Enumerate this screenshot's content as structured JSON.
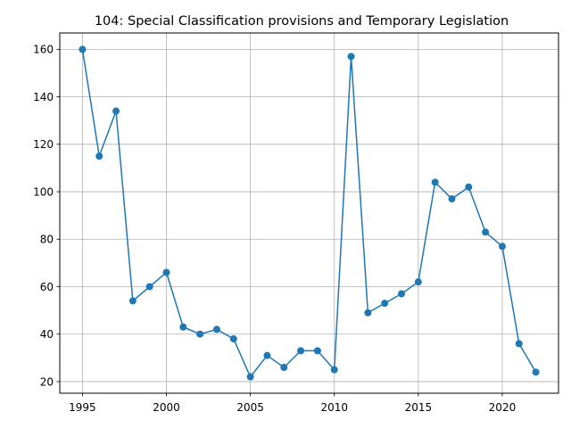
{
  "chart_data": {
    "type": "line",
    "title": "104: Special Classification provisions and Temporary Legislation",
    "xlabel": "",
    "ylabel": "",
    "x": [
      1995,
      1996,
      1997,
      1998,
      1999,
      2000,
      2001,
      2002,
      2003,
      2004,
      2005,
      2006,
      2007,
      2008,
      2009,
      2010,
      2011,
      2012,
      2013,
      2014,
      2015,
      2016,
      2017,
      2018,
      2019,
      2020,
      2021,
      2022
    ],
    "series": [
      {
        "values": [
          160,
          115,
          134,
          54,
          60,
          66,
          43,
          40,
          42,
          38,
          22,
          31,
          26,
          33,
          33,
          25,
          157,
          49,
          53,
          57,
          62,
          104,
          97,
          102,
          83,
          77,
          36,
          24
        ]
      }
    ],
    "xlim": [
      1993.65,
      2023.35
    ],
    "ylim": [
      15.1,
      166.9
    ],
    "xticks": [
      1995,
      2000,
      2005,
      2010,
      2015,
      2020
    ],
    "yticks": [
      20,
      40,
      60,
      80,
      100,
      120,
      140,
      160
    ],
    "grid": true,
    "line_color": "#1f77b4",
    "marker": "circle"
  }
}
